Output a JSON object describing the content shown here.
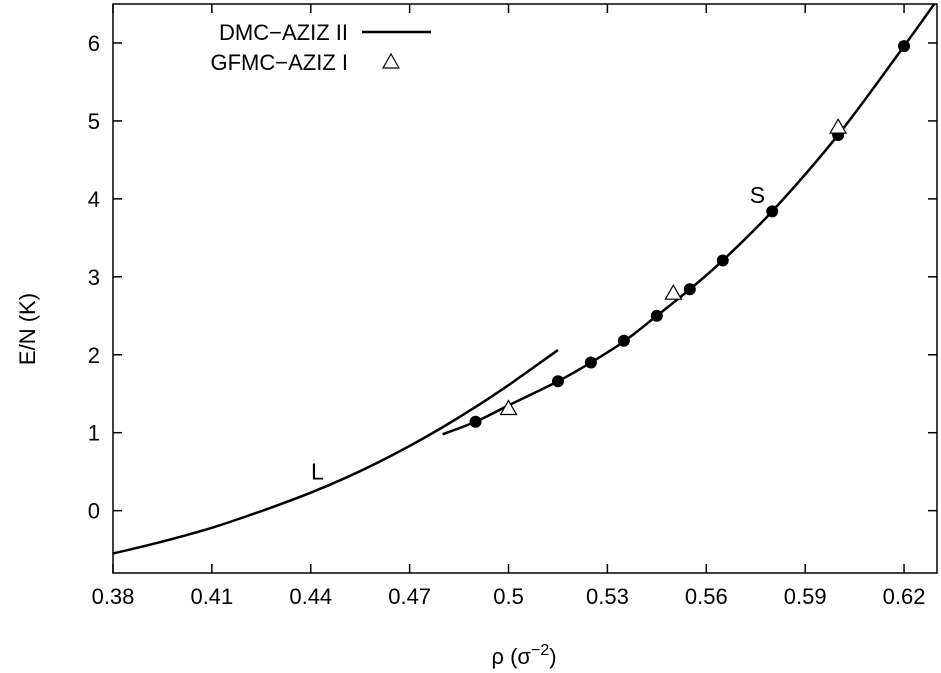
{
  "chart_data": {
    "type": "line",
    "xlabel_main": "ρ (σ",
    "xlabel_sup": "−2",
    "xlabel_close": ")",
    "ylabel": "E/N (K)",
    "xlim": [
      0.38,
      0.63
    ],
    "ylim": [
      -0.8,
      6.5
    ],
    "x_ticks": [
      0.38,
      0.41,
      0.44,
      0.47,
      0.5,
      0.53,
      0.56,
      0.59,
      0.62
    ],
    "x_tick_labels": [
      "0.38",
      "0.41",
      "0.44",
      "0.47",
      "0.5",
      "0.53",
      "0.56",
      "0.59",
      "0.62"
    ],
    "y_ticks": [
      0,
      1,
      2,
      3,
      4,
      5,
      6
    ],
    "y_tick_labels": [
      "0",
      "1",
      "2",
      "3",
      "4",
      "5",
      "6"
    ],
    "grid": false,
    "legend_position": "top-left",
    "annotations": [
      {
        "text": "L",
        "x": 0.442,
        "y": 0.4
      },
      {
        "text": "S",
        "x": 0.5755,
        "y": 3.95
      }
    ],
    "series": [
      {
        "name": "DMC−AZIZ II",
        "style": "line",
        "segment": "liquid",
        "x": [
          0.38,
          0.39,
          0.4,
          0.41,
          0.42,
          0.43,
          0.44,
          0.45,
          0.46,
          0.47,
          0.48,
          0.49,
          0.5,
          0.505,
          0.51,
          0.515
        ],
        "y": [
          -0.55,
          -0.45,
          -0.34,
          -0.22,
          -0.08,
          0.07,
          0.23,
          0.41,
          0.61,
          0.83,
          1.07,
          1.33,
          1.61,
          1.76,
          1.91,
          2.06
        ]
      },
      {
        "name": "DMC−AZIZ II",
        "style": "line",
        "segment": "solid",
        "x": [
          0.48,
          0.49,
          0.5,
          0.515,
          0.525,
          0.535,
          0.545,
          0.555,
          0.565,
          0.58,
          0.6,
          0.62,
          0.63
        ],
        "y": [
          0.98,
          1.14,
          1.35,
          1.66,
          1.9,
          2.17,
          2.5,
          2.84,
          3.21,
          3.84,
          4.82,
          5.96,
          6.55
        ]
      },
      {
        "name": "",
        "style": "dots",
        "x": [
          0.49,
          0.515,
          0.525,
          0.535,
          0.545,
          0.555,
          0.565,
          0.58,
          0.6,
          0.62
        ],
        "y": [
          1.14,
          1.66,
          1.9,
          2.18,
          2.5,
          2.84,
          3.21,
          3.84,
          4.82,
          5.96
        ]
      },
      {
        "name": "GFMC−AZIZ I",
        "style": "triangles",
        "x": [
          0.5,
          0.55,
          0.6
        ],
        "y": [
          1.31,
          2.79,
          4.92
        ]
      }
    ]
  }
}
